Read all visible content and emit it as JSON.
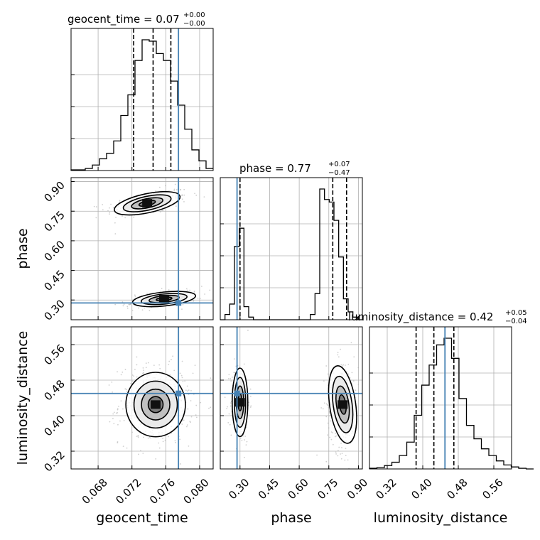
{
  "chart_data": {
    "type": "corner",
    "parameters": [
      "geocent_time",
      "phase",
      "luminosity_distance"
    ],
    "truth": {
      "geocent_time": 0.0775,
      "phase": 0.285,
      "luminosity_distance": 0.45
    },
    "truth_color": "#4682b4",
    "titles": [
      {
        "label": "geocent_time = 0.07",
        "plus": "+0.00",
        "minus": "−0.00"
      },
      {
        "label": "phase = 0.77",
        "plus": "+0.07",
        "minus": "−0.47"
      },
      {
        "label": "luminosity_distance = 0.42",
        "plus": "+0.05",
        "minus": "−0.04"
      }
    ],
    "axis_labels": {
      "x": [
        "geocent_time",
        "phase",
        "luminosity_distance"
      ],
      "y": [
        "phase",
        "luminosity_distance"
      ]
    },
    "ticks": {
      "geocent_time": [
        "0.068",
        "0.072",
        "0.076",
        "0.080"
      ],
      "phase": [
        "0.30",
        "0.45",
        "0.60",
        "0.75",
        "0.90"
      ],
      "luminosity_distance": [
        "0.32",
        "0.40",
        "0.48",
        "0.56"
      ]
    },
    "ranges": {
      "geocent_time": [
        0.0648,
        0.0816
      ],
      "phase": [
        0.2,
        0.92
      ],
      "luminosity_distance": [
        0.28,
        0.6
      ]
    },
    "quantiles": {
      "geocent_time": [
        0.0722,
        0.0745,
        0.0766
      ],
      "phase": [
        0.3,
        0.77,
        0.84
      ],
      "luminosity_distance": [
        0.385,
        0.425,
        0.47
      ]
    },
    "hist_geocent_time": {
      "edges_start": 0.0648,
      "bin_width": 0.00084,
      "counts": [
        1,
        1,
        3,
        8,
        17,
        25,
        43,
        80,
        110,
        160,
        190,
        188,
        170,
        160,
        130,
        95,
        60,
        30,
        14,
        3
      ]
    },
    "hist_phase": {
      "edges_start": 0.2,
      "bin_width": 0.024,
      "counts": [
        0,
        2,
        6,
        28,
        35,
        5,
        1,
        0,
        0,
        0,
        0,
        0,
        0,
        0,
        0,
        0,
        0,
        0,
        0,
        2,
        10,
        50,
        46,
        45,
        38,
        24,
        8,
        3,
        1,
        0
      ]
    },
    "hist_luminosity_distance": {
      "edges_start": 0.28,
      "bin_width": 0.0168,
      "counts": [
        1,
        2,
        5,
        10,
        20,
        40,
        80,
        125,
        155,
        185,
        195,
        165,
        105,
        65,
        45,
        30,
        20,
        12,
        6,
        3,
        1,
        0
      ]
    }
  }
}
